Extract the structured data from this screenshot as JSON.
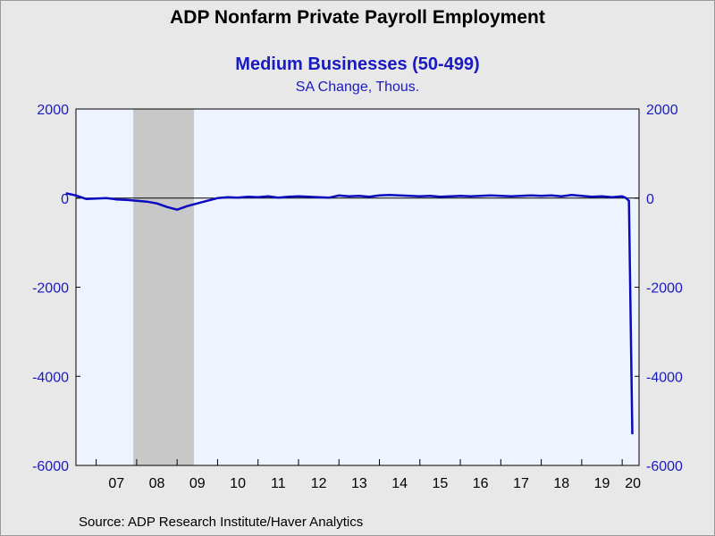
{
  "chart_data": {
    "type": "line",
    "title": "ADP Nonfarm Private Payroll Employment",
    "subtitle": "Medium Businesses (50-499)",
    "units": "SA Change, Thous.",
    "source": "Source:  ADP Research Institute/Haver Analytics",
    "x_tick_labels": [
      "07",
      "08",
      "09",
      "10",
      "11",
      "12",
      "13",
      "14",
      "15",
      "16",
      "17",
      "18",
      "19",
      "20"
    ],
    "x_range": [
      "2006-07",
      "2020-06"
    ],
    "ylim": [
      -6000,
      2000
    ],
    "y_ticks": [
      2000,
      0,
      -2000,
      -4000,
      -6000
    ],
    "y_tick_labels_left": [
      "2000",
      "0",
      "-2000",
      "-4000",
      "-6000"
    ],
    "y_tick_labels_right": [
      "2000",
      "0",
      "-2000",
      "-4000",
      "-6000"
    ],
    "recession_shading": {
      "start": "2007-12",
      "end": "2009-06",
      "color": "#c8c8c8"
    },
    "zero_line": true,
    "grid": false,
    "plot_background": "#eef4ff",
    "series": [
      {
        "color": "#0a0abf",
        "x": [
          "2006-04",
          "2006-07",
          "2006-10",
          "2007-01",
          "2007-04",
          "2007-07",
          "2007-10",
          "2008-01",
          "2008-04",
          "2008-07",
          "2008-10",
          "2009-01",
          "2009-04",
          "2009-07",
          "2009-10",
          "2010-01",
          "2010-04",
          "2010-07",
          "2010-10",
          "2011-01",
          "2011-04",
          "2011-07",
          "2011-10",
          "2012-01",
          "2012-04",
          "2012-07",
          "2012-10",
          "2013-01",
          "2013-04",
          "2013-07",
          "2013-10",
          "2014-01",
          "2014-04",
          "2014-07",
          "2014-10",
          "2015-01",
          "2015-04",
          "2015-07",
          "2015-10",
          "2016-01",
          "2016-04",
          "2016-07",
          "2016-10",
          "2017-01",
          "2017-04",
          "2017-07",
          "2017-10",
          "2018-01",
          "2018-04",
          "2018-07",
          "2018-10",
          "2019-01",
          "2019-04",
          "2019-07",
          "2019-10",
          "2020-01",
          "2020-02",
          "2020-03",
          "2020-04"
        ],
        "values": [
          110,
          60,
          -20,
          -10,
          0,
          -30,
          -40,
          -60,
          -80,
          -120,
          -200,
          -260,
          -180,
          -120,
          -60,
          0,
          20,
          10,
          30,
          20,
          40,
          10,
          30,
          40,
          30,
          20,
          10,
          60,
          40,
          50,
          30,
          60,
          70,
          60,
          50,
          40,
          50,
          30,
          40,
          50,
          40,
          50,
          60,
          50,
          40,
          50,
          60,
          50,
          60,
          40,
          70,
          50,
          30,
          40,
          20,
          40,
          10,
          -60,
          -5300
        ]
      }
    ]
  }
}
